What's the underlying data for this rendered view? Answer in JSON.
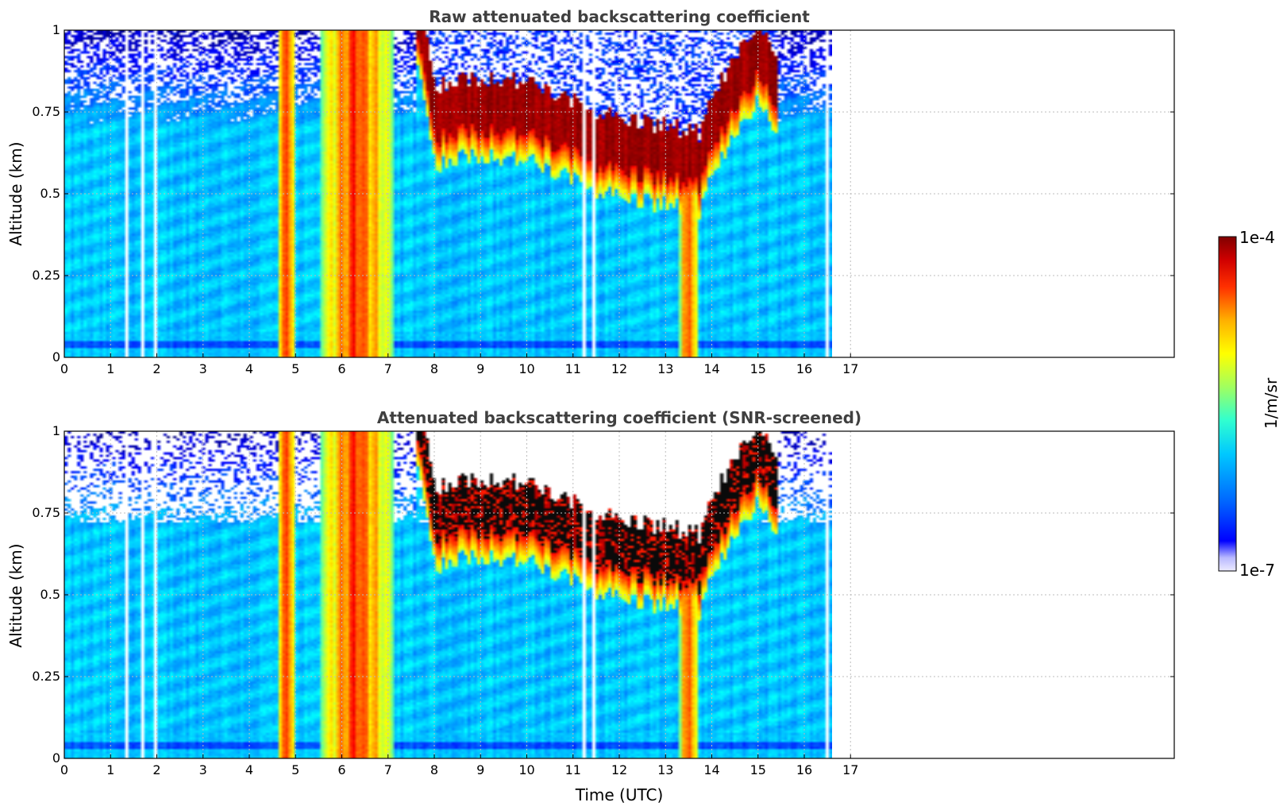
{
  "panels": [
    {
      "title": "Raw attenuated backscattering coefficient",
      "ylabel": "Altitude (km)",
      "xlabel": "",
      "masked": false
    },
    {
      "title": "Attenuated backscattering coefficient (SNR-screened)",
      "ylabel": "Altitude (km)",
      "xlabel": "Time (UTC)",
      "masked": true
    }
  ],
  "colorbar": {
    "label": "1/m/sr",
    "max_label": "1e-4",
    "min_label": "1e-7",
    "scale": "log",
    "range": [
      1e-07,
      0.0001
    ],
    "colormap": "jet"
  },
  "chart_data": [
    {
      "type": "heatmap",
      "title": "Raw attenuated backscattering coefficient",
      "xlabel": "",
      "ylabel": "Altitude (km)",
      "x_unit": "UTC hour",
      "xlim": [
        0,
        24
      ],
      "ylim": [
        0,
        1
      ],
      "xticks": [
        0,
        1,
        2,
        3,
        4,
        5,
        6,
        7,
        8,
        9,
        10,
        11,
        12,
        13,
        14,
        15,
        16,
        17
      ],
      "yticks": [
        0,
        0.25,
        0.5,
        0.75,
        1
      ],
      "ytick_labels": [
        "0",
        "0.25",
        "0.5",
        "0.75",
        "1"
      ],
      "grid": true,
      "data_end_time": 16.6,
      "cloud_base": {
        "time": [
          7.7,
          8.0,
          9.0,
          10.0,
          11.0,
          12.0,
          13.0,
          13.7,
          14.0,
          14.5,
          15.0,
          15.3
        ],
        "altitude_km": [
          0.95,
          0.65,
          0.68,
          0.66,
          0.6,
          0.55,
          0.53,
          0.5,
          0.6,
          0.75,
          0.85,
          0.75
        ]
      },
      "precip_bands": [
        [
          4.6,
          5.0
        ],
        [
          5.5,
          7.1
        ],
        [
          13.3,
          13.7
        ]
      ]
    },
    {
      "type": "heatmap",
      "title": "Attenuated backscattering coefficient (SNR-screened)",
      "xlabel": "Time (UTC)",
      "ylabel": "Altitude (km)",
      "x_unit": "UTC hour",
      "xlim": [
        0,
        24
      ],
      "ylim": [
        0,
        1
      ],
      "xticks": [
        0,
        1,
        2,
        3,
        4,
        5,
        6,
        7,
        8,
        9,
        10,
        11,
        12,
        13,
        14,
        15,
        16,
        17
      ],
      "yticks": [
        0,
        0.25,
        0.5,
        0.75,
        1
      ],
      "ytick_labels": [
        "0",
        "0.25",
        "0.5",
        "0.75",
        "1"
      ],
      "grid": true,
      "data_end_time": 16.6,
      "screened": true
    }
  ]
}
